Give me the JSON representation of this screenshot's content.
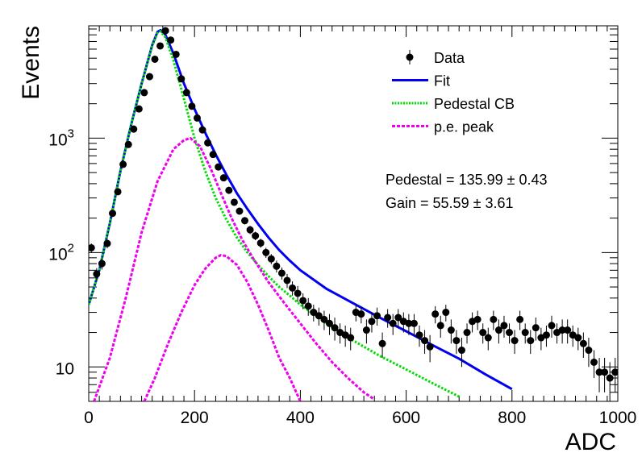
{
  "chart_data": {
    "type": "scatter",
    "xlabel": "ADC",
    "ylabel": "Events",
    "xlim": [
      0,
      1000
    ],
    "ylim": [
      5,
      9600
    ],
    "yscale": "log",
    "grid": false,
    "legend_position": "top-right",
    "x_ticks": [
      "0",
      "200",
      "400",
      "600",
      "800",
      "1000"
    ],
    "y_ticks": [
      {
        "value": 10,
        "base": "10",
        "exp": ""
      },
      {
        "value": 100,
        "base": "10",
        "exp": "2"
      },
      {
        "value": 1000,
        "base": "10",
        "exp": "3"
      }
    ],
    "legend": [
      {
        "label": "Data",
        "kind": "marker",
        "color": "#000000"
      },
      {
        "label": "Fit",
        "kind": "line",
        "color": "#0000ee"
      },
      {
        "label": "Pedestal CB",
        "kind": "dotted",
        "color": "#00dd00"
      },
      {
        "label": "p.e. peak",
        "kind": "dashed",
        "color": "#ee00ee"
      }
    ],
    "annotations": [
      "Pedestal = 135.99 ± 0.43",
      "Gain = 55.59 ± 3.61"
    ],
    "series": [
      {
        "name": "Data",
        "style": "points",
        "color": "#000000",
        "x": [
          5,
          15,
          25,
          35,
          45,
          55,
          65,
          75,
          85,
          95,
          105,
          115,
          125,
          135,
          145,
          155,
          165,
          175,
          185,
          195,
          205,
          215,
          225,
          235,
          245,
          255,
          265,
          275,
          285,
          295,
          305,
          315,
          325,
          335,
          345,
          355,
          365,
          375,
          385,
          395,
          405,
          415,
          425,
          435,
          445,
          455,
          465,
          475,
          485,
          495,
          505,
          515,
          525,
          535,
          545,
          555,
          565,
          575,
          585,
          595,
          605,
          615,
          625,
          635,
          645,
          655,
          665,
          675,
          685,
          695,
          705,
          715,
          725,
          735,
          745,
          755,
          765,
          775,
          785,
          795,
          805,
          815,
          825,
          835,
          845,
          855,
          865,
          875,
          885,
          895,
          905,
          915,
          925,
          935,
          945,
          955,
          965,
          975,
          985,
          995
        ],
        "y": [
          110,
          65,
          80,
          120,
          220,
          340,
          590,
          880,
          1200,
          1800,
          2500,
          3450,
          4900,
          6400,
          8700,
          7200,
          5400,
          3300,
          2500,
          1900,
          1500,
          1180,
          910,
          720,
          560,
          450,
          350,
          275,
          230,
          190,
          158,
          140,
          121,
          100,
          88,
          76,
          66,
          57,
          49,
          44,
          38,
          34,
          30,
          28,
          26,
          24,
          22,
          20,
          19,
          18,
          30,
          29,
          21,
          25,
          28,
          16,
          27,
          24,
          27,
          25,
          24,
          24,
          19,
          17,
          15,
          29,
          23,
          30,
          21,
          17,
          14,
          20,
          25,
          26,
          20,
          18,
          26,
          21,
          23,
          20,
          17,
          26,
          20,
          17,
          22,
          18,
          19,
          23,
          20,
          21,
          21,
          19,
          18,
          16,
          14,
          11,
          9,
          9,
          8,
          9
        ],
        "yerr": [
          10,
          8,
          9,
          11,
          15,
          18,
          24,
          30,
          35,
          42,
          50,
          59,
          70,
          80,
          93,
          85,
          73,
          57,
          50,
          44,
          39,
          34,
          30,
          27,
          24,
          21,
          19,
          17,
          15,
          14,
          13,
          12,
          11,
          10,
          9,
          9,
          8,
          8,
          7,
          7,
          6,
          6,
          5,
          5,
          5,
          5,
          5,
          4,
          4,
          4,
          5,
          5,
          5,
          5,
          5,
          4,
          5,
          5,
          5,
          5,
          5,
          5,
          4,
          4,
          4,
          5,
          5,
          5,
          5,
          4,
          4,
          4,
          5,
          5,
          4,
          4,
          5,
          5,
          5,
          4,
          4,
          5,
          4,
          4,
          5,
          4,
          4,
          5,
          4,
          5,
          5,
          4,
          4,
          4,
          4,
          3,
          3,
          3,
          3,
          3
        ]
      },
      {
        "name": "Fit",
        "style": "line",
        "color": "#0000ee",
        "x": [
          0,
          20,
          40,
          60,
          80,
          100,
          120,
          130,
          136,
          145,
          160,
          180,
          200,
          220,
          240,
          260,
          280,
          300,
          320,
          340,
          360,
          380,
          400,
          450,
          500,
          550,
          600,
          650,
          700,
          750,
          800
        ],
        "y": [
          35,
          70,
          180,
          520,
          1300,
          3000,
          6500,
          8500,
          8800,
          8000,
          5500,
          3000,
          1800,
          1120,
          720,
          480,
          330,
          240,
          178,
          135,
          105,
          85,
          70,
          48,
          36,
          27,
          20.5,
          15.5,
          11.8,
          8.6,
          6.4
        ]
      },
      {
        "name": "Pedestal CB",
        "style": "dotted",
        "color": "#00dd00",
        "x": [
          0,
          20,
          40,
          60,
          80,
          100,
          120,
          130,
          136,
          145,
          160,
          180,
          200,
          220,
          240,
          260,
          280,
          300,
          320,
          340,
          360,
          380,
          400,
          450,
          500,
          550,
          600,
          650,
          700
        ],
        "y": [
          35,
          70,
          180,
          520,
          1300,
          3000,
          6400,
          8300,
          8600,
          7600,
          4800,
          2200,
          1000,
          520,
          300,
          195,
          135,
          100,
          78,
          62,
          50,
          42,
          35,
          24,
          17,
          12.5,
          9.5,
          7.2,
          5.5
        ]
      },
      {
        "name": "p.e. peak",
        "style": "dashed",
        "color": "#ee00ee",
        "x": [
          10,
          40,
          70,
          100,
          130,
          160,
          180,
          192,
          210,
          230,
          250,
          270,
          290,
          310,
          340,
          370,
          400,
          430,
          460,
          490,
          520,
          540
        ],
        "y": [
          5,
          12,
          40,
          150,
          420,
          800,
          960,
          1000,
          850,
          550,
          330,
          200,
          130,
          90,
          55,
          36,
          24,
          16,
          11,
          8,
          6,
          5.2
        ]
      },
      {
        "name": "p.e. peak",
        "style": "dashed",
        "color": "#ee00ee",
        "x": [
          105,
          125,
          150,
          175,
          200,
          220,
          240,
          250,
          260,
          280,
          300,
          320,
          340,
          360,
          380,
          400
        ],
        "y": [
          5,
          8,
          16,
          30,
          52,
          72,
          90,
          95,
          93,
          78,
          55,
          35,
          21,
          12,
          8,
          5
        ]
      }
    ]
  }
}
